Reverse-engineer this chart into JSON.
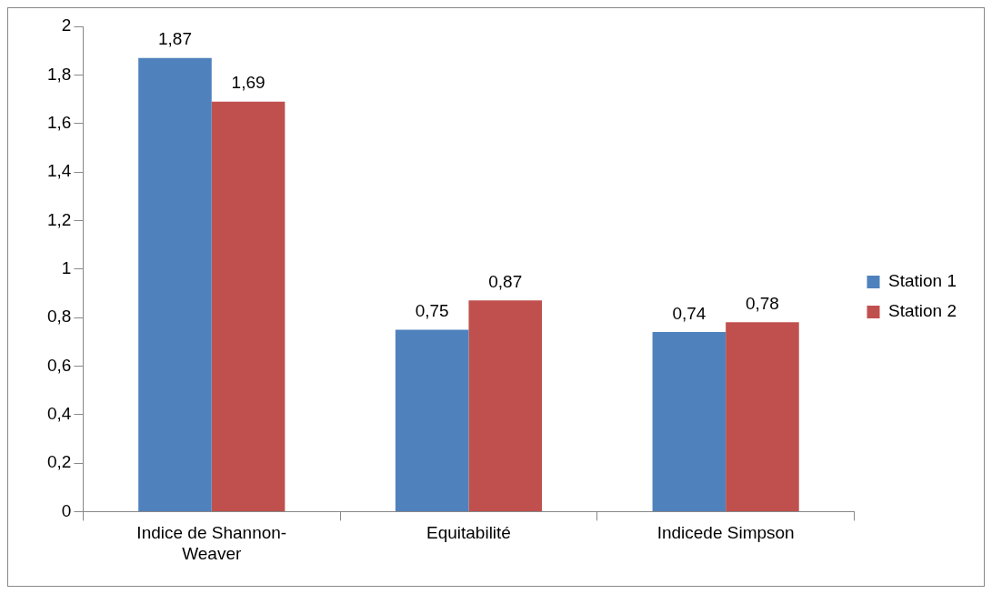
{
  "chart_data": {
    "type": "bar",
    "categories": [
      "Indice de Shannon-Weaver",
      "Equitabilité",
      "Indicede Simpson"
    ],
    "series": [
      {
        "name": "Station 1",
        "color": "#4f81bd",
        "values": [
          1.87,
          0.75,
          0.74
        ],
        "value_labels": [
          "1,87",
          "0,75",
          "0,74"
        ]
      },
      {
        "name": "Station 2",
        "color": "#c0504d",
        "values": [
          1.69,
          0.87,
          0.78
        ],
        "value_labels": [
          "1,69",
          "0,87",
          "0,78"
        ]
      }
    ],
    "ylim": [
      0,
      2
    ],
    "yticks": [
      {
        "value": 0,
        "label": "0"
      },
      {
        "value": 0.2,
        "label": "0,2"
      },
      {
        "value": 0.4,
        "label": "0,4"
      },
      {
        "value": 0.6,
        "label": "0,6"
      },
      {
        "value": 0.8,
        "label": "0,8"
      },
      {
        "value": 1,
        "label": "1"
      },
      {
        "value": 1.2,
        "label": "1,2"
      },
      {
        "value": 1.4,
        "label": "1,4"
      },
      {
        "value": 1.6,
        "label": "1,6"
      },
      {
        "value": 1.8,
        "label": "1,8"
      },
      {
        "value": 2,
        "label": "2"
      }
    ],
    "grid": false,
    "legend": "right"
  }
}
